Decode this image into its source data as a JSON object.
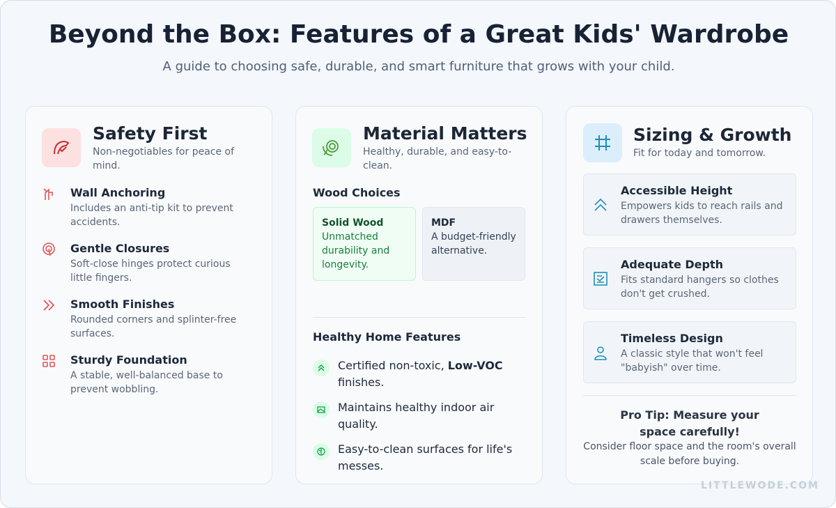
{
  "header": {
    "title": "Beyond the Box: Features of a Great Kids' Wardrobe",
    "subtitle": "A guide to choosing safe, durable, and smart furniture that grows with your child."
  },
  "cards": [
    {
      "title": "Safety First",
      "subtitle": "Non-negotiables for peace of mind.",
      "items": [
        {
          "title": "Wall Anchoring",
          "text": "Includes an anti-tip kit to prevent accidents."
        },
        {
          "title": "Gentle Closures",
          "text": "Soft-close hinges protect curious little fingers."
        },
        {
          "title": "Smooth Finishes",
          "text": "Rounded corners and splinter-free surfaces."
        },
        {
          "title": "Sturdy Foundation",
          "text": "A stable, well-balanced base to prevent wobbling."
        }
      ]
    },
    {
      "title": "Material Matters",
      "subtitle": "Healthy, durable, and easy-to-clean.",
      "wood_heading": "Wood Choices",
      "wood_options": [
        {
          "title": "Solid Wood",
          "text": "Unmatched durability and longevity."
        },
        {
          "title": "MDF",
          "text": "A budget-friendly alternative."
        }
      ],
      "features_heading": "Healthy Home Features",
      "features": [
        {
          "text": "Certified non-toxic,",
          "bold": "Low-VOC",
          "text_after": "finishes."
        },
        {
          "text": "Maintains healthy indoor air quality."
        },
        {
          "text": "Easy-to-clean surfaces for life's messes."
        }
      ]
    },
    {
      "title": "Sizing & Growth",
      "subtitle": "Fit for today and tomorrow.",
      "items": [
        {
          "title": "Accessible Height",
          "text": "Empowers kids to reach rails and drawers themselves."
        },
        {
          "title": "Adequate Depth",
          "text": "Fits standard hangers so clothes don't get crushed."
        },
        {
          "title": "Timeless Design",
          "text": "A classic style that won't feel \"babyish\" over time."
        }
      ],
      "tip": {
        "title": "Pro Tip: Measure your space carefully!",
        "text": "Consider floor space and the room's overall scale before buying."
      }
    }
  ],
  "watermark": "LITTLEWODE.COM"
}
